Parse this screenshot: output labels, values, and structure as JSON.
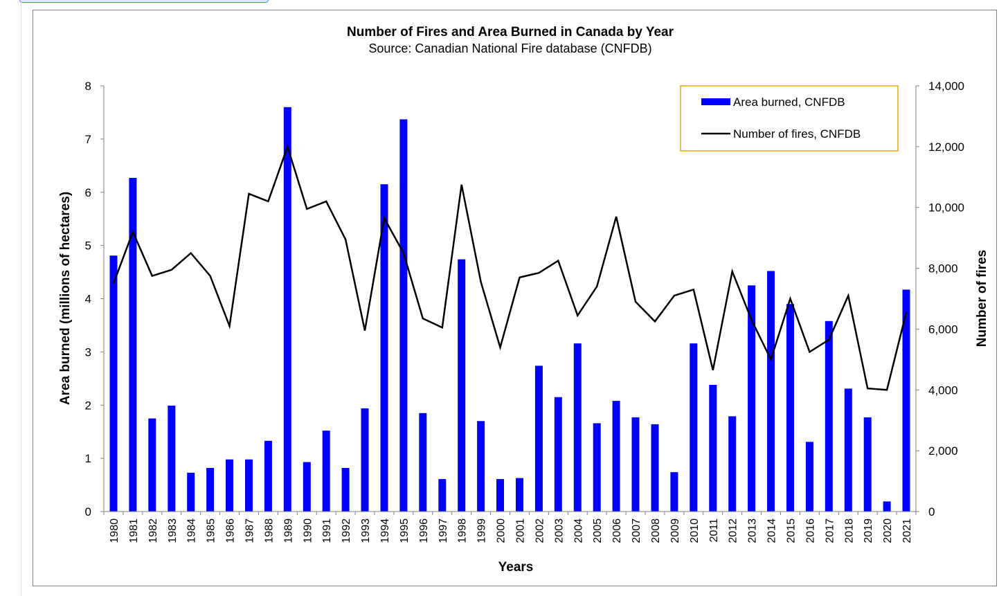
{
  "chart_data": {
    "type": "bar",
    "title": "Number of Fires and Area Burned in Canada by Year",
    "subtitle": "Source: Canadian National Fire database (CNFDB)",
    "xlabel": "Years",
    "ylabel": "Area burned (millions of hectares)",
    "y2label": "Number of fires",
    "ylim": [
      0,
      8
    ],
    "y2lim": [
      0,
      14000
    ],
    "yticks": [
      "0",
      "1",
      "2",
      "3",
      "4",
      "5",
      "6",
      "7",
      "8"
    ],
    "y2ticks": [
      "0",
      "2,000",
      "4,000",
      "6,000",
      "8,000",
      "10,000",
      "12,000",
      "14,000"
    ],
    "grid": false,
    "legend_position": "top-right",
    "categories": [
      "1980",
      "1981",
      "1982",
      "1983",
      "1984",
      "1985",
      "1986",
      "1987",
      "1988",
      "1989",
      "1990",
      "1991",
      "1992",
      "1993",
      "1994",
      "1995",
      "1996",
      "1997",
      "1998",
      "1999",
      "2000",
      "2001",
      "2002",
      "2003",
      "2004",
      "2005",
      "2006",
      "2007",
      "2008",
      "2009",
      "2010",
      "2011",
      "2012",
      "2013",
      "2014",
      "2015",
      "2016",
      "2017",
      "2018",
      "2019",
      "2020",
      "2021"
    ],
    "series": [
      {
        "name": "Area burned, CNFDB",
        "type": "bar",
        "axis": "left",
        "color": "#0000ff",
        "values": [
          4.81,
          6.27,
          1.75,
          1.99,
          0.73,
          0.82,
          0.98,
          0.98,
          1.33,
          7.6,
          0.93,
          1.52,
          0.82,
          1.94,
          6.15,
          7.37,
          1.85,
          0.61,
          4.74,
          1.7,
          0.61,
          0.63,
          2.74,
          2.15,
          3.16,
          1.66,
          2.08,
          1.77,
          1.64,
          0.74,
          3.16,
          2.38,
          1.79,
          4.25,
          4.52,
          3.9,
          1.31,
          3.58,
          2.31,
          1.77,
          0.19,
          4.17
        ]
      },
      {
        "name": "Number of fires, CNFDB",
        "type": "line",
        "axis": "right",
        "color": "#000000",
        "values": [
          7500,
          9200,
          7750,
          7950,
          8500,
          7750,
          6100,
          10450,
          10200,
          12000,
          9950,
          10200,
          8950,
          5950,
          9650,
          8500,
          6350,
          6050,
          10750,
          7550,
          5400,
          7700,
          7850,
          8250,
          6450,
          7400,
          9700,
          6900,
          6250,
          7100,
          7300,
          4650,
          7900,
          6300,
          5000,
          7000,
          5250,
          5650,
          7100,
          4050,
          4000,
          6550
        ]
      }
    ]
  }
}
